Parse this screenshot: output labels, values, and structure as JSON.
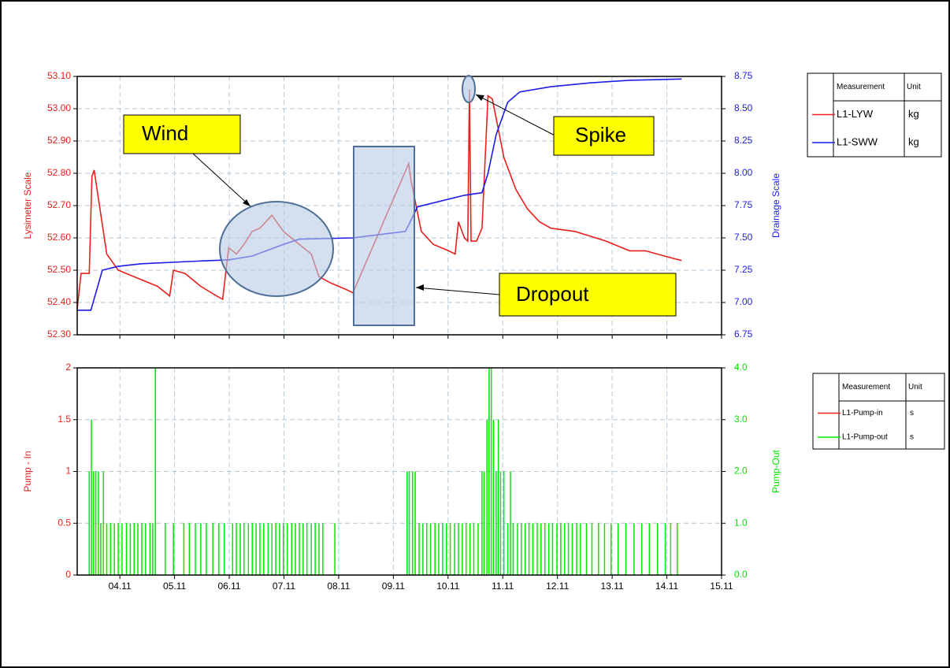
{
  "chart_data": [
    {
      "type": "line",
      "ylabel": "Lysimeter Scale",
      "y2label": "Drainage Scale",
      "xlim": [
        3.22,
        15
      ],
      "ylim": [
        52.3,
        53.1
      ],
      "y2lim": [
        6.75,
        8.75
      ],
      "grid": true,
      "yticks": [
        {
          "value": 52.3,
          "label": "52.30"
        },
        {
          "value": 52.4,
          "label": "52.40"
        },
        {
          "value": 52.5,
          "label": "52.50"
        },
        {
          "value": 52.6,
          "label": "52.60"
        },
        {
          "value": 52.7,
          "label": "52.70"
        },
        {
          "value": 52.8,
          "label": "52.80"
        },
        {
          "value": 52.9,
          "label": "52.90"
        },
        {
          "value": 53.0,
          "label": "53.00"
        },
        {
          "value": 53.1,
          "label": "53.10"
        }
      ],
      "y2ticks": [
        6.75,
        {
          "value": 7,
          "label": "7.00"
        },
        7.25,
        {
          "value": 7.5,
          "label": "7.50"
        },
        7.75,
        {
          "value": 8,
          "label": "8.00"
        },
        8.25,
        {
          "value": 8.5,
          "label": "8.50"
        },
        8.75
      ],
      "legend_headers": [
        "Measurement",
        "Unit"
      ],
      "annotations": [
        "Wind",
        "Spike",
        "Dropout"
      ],
      "series": [
        {
          "name": "L1-LYW",
          "unit": "kg",
          "color": "#e8201c",
          "x": [
            3.22,
            3.29,
            3.44,
            3.49,
            3.53,
            3.76,
            3.97,
            4.4,
            4.69,
            4.91,
            4.98,
            5.19,
            5.48,
            5.77,
            5.88,
            5.99,
            6.13,
            6.27,
            6.42,
            6.56,
            6.78,
            6.99,
            7.28,
            7.5,
            7.64,
            7.86,
            8.14,
            8.26,
            9.28,
            9.32,
            9.51,
            9.73,
            10.01,
            10.13,
            10.19,
            10.3,
            10.36,
            10.39,
            10.42,
            10.52,
            10.62,
            10.73,
            10.81,
            11.02,
            11.24,
            11.45,
            11.67,
            11.88,
            12.32,
            12.89,
            13.32,
            13.61,
            14.04,
            14.27
          ],
          "values": [
            52.38,
            52.49,
            52.49,
            52.79,
            52.81,
            52.55,
            52.5,
            52.47,
            52.45,
            52.42,
            52.5,
            52.49,
            52.45,
            52.42,
            52.41,
            52.57,
            52.55,
            52.58,
            52.62,
            52.63,
            52.67,
            52.62,
            52.58,
            52.55,
            52.48,
            52.46,
            52.44,
            52.43,
            52.83,
            52.78,
            52.62,
            52.58,
            52.56,
            52.55,
            52.65,
            52.6,
            52.59,
            53.06,
            52.59,
            52.59,
            52.63,
            53.04,
            53.03,
            52.85,
            52.75,
            52.69,
            52.65,
            52.63,
            52.62,
            52.59,
            52.56,
            52.56,
            52.54,
            52.53
          ]
        },
        {
          "name": "L1-SWW",
          "unit": "kg",
          "color": "#1c1ce8",
          "axis": "y2",
          "x": [
            3.22,
            3.47,
            3.68,
            3.97,
            4.4,
            5.41,
            5.99,
            6.42,
            6.99,
            7.28,
            8.26,
            9.22,
            9.28,
            9.44,
            10.01,
            10.3,
            10.62,
            10.73,
            10.88,
            11.09,
            11.31,
            11.88,
            12.6,
            13.32,
            14.27
          ],
          "values": [
            6.94,
            6.94,
            7.25,
            7.28,
            7.3,
            7.32,
            7.33,
            7.36,
            7.45,
            7.49,
            7.5,
            7.55,
            7.6,
            7.74,
            7.8,
            7.83,
            7.85,
            8.0,
            8.3,
            8.55,
            8.63,
            8.67,
            8.7,
            8.72,
            8.73
          ]
        }
      ]
    },
    {
      "type": "bar",
      "ylabel": "Pump - In",
      "y2label": "Pump-Out",
      "xlim": [
        3.22,
        15
      ],
      "ylim": [
        0,
        2
      ],
      "y2lim": [
        0,
        4
      ],
      "grid": true,
      "xticks": [
        {
          "value": 4,
          "label": "04.11"
        },
        {
          "value": 5,
          "label": "05.11"
        },
        {
          "value": 6,
          "label": "06.11"
        },
        {
          "value": 7,
          "label": "07.11"
        },
        {
          "value": 8,
          "label": "08.11"
        },
        {
          "value": 9,
          "label": "09.11"
        },
        {
          "value": 10,
          "label": "10.11"
        },
        {
          "value": 11,
          "label": "11.11"
        },
        {
          "value": 12,
          "label": "12.11"
        },
        {
          "value": 13,
          "label": "13.11"
        },
        {
          "value": 14,
          "label": "14.11"
        },
        {
          "value": 15,
          "label": "15.11"
        }
      ],
      "yticks": [
        0,
        0.5,
        1,
        1.5,
        2
      ],
      "y2ticks": [
        {
          "value": 0,
          "label": "0.0"
        },
        {
          "value": 1,
          "label": "1.0"
        },
        {
          "value": 2,
          "label": "2.0"
        },
        {
          "value": 3,
          "label": "3.0"
        },
        {
          "value": 4,
          "label": "4.0"
        }
      ],
      "legend_headers": [
        "Measurement",
        "Unit"
      ],
      "series": [
        {
          "name": "L1-Pump-in",
          "unit": "s",
          "color": "#e8201c",
          "x": [
            3.44,
            14.27
          ],
          "values": [
            0,
            0
          ]
        },
        {
          "name": "L1-Pump-out",
          "unit": "s",
          "color": "#00e800",
          "axis": "y2",
          "x": [
            3.44,
            3.48,
            3.52,
            3.56,
            3.61,
            3.65,
            3.7,
            3.76,
            3.83,
            3.9,
            3.97,
            4.04,
            4.12,
            4.19,
            4.26,
            4.33,
            4.4,
            4.47,
            4.55,
            4.6,
            4.65,
            4.83,
            4.98,
            5.17,
            5.27,
            5.38,
            5.48,
            5.58,
            5.7,
            5.81,
            5.91,
            6.06,
            6.13,
            6.2,
            6.27,
            6.35,
            6.42,
            6.49,
            6.56,
            6.63,
            6.71,
            6.78,
            6.85,
            6.92,
            6.99,
            7.06,
            7.14,
            7.21,
            7.28,
            7.35,
            7.42,
            7.5,
            7.57,
            7.64,
            7.71,
            7.93,
            9.25,
            9.29,
            9.35,
            9.4,
            9.47,
            9.54,
            9.61,
            9.68,
            9.76,
            9.83,
            9.9,
            9.97,
            10.04,
            10.12,
            10.19,
            10.26,
            10.33,
            10.4,
            10.47,
            10.55,
            10.62,
            10.66,
            10.71,
            10.75,
            10.79,
            10.83,
            10.88,
            10.92,
            10.96,
            11.02,
            11.09,
            11.14,
            11.19,
            11.27,
            11.34,
            11.41,
            11.48,
            11.55,
            11.63,
            11.7,
            11.77,
            11.84,
            11.91,
            11.99,
            12.06,
            12.13,
            12.2,
            12.27,
            12.35,
            12.42,
            12.53,
            12.63,
            12.75,
            12.86,
            12.98,
            13.11,
            13.25,
            13.4,
            13.54,
            13.68,
            13.83,
            13.97,
            14.07,
            14.19
          ],
          "values": [
            2,
            3,
            2,
            2,
            2,
            1,
            2,
            1,
            1,
            1,
            1,
            1,
            1,
            1,
            1,
            1,
            1,
            1,
            1,
            1,
            4,
            1,
            1,
            1,
            1,
            1,
            1,
            1,
            1,
            1,
            1,
            1,
            1,
            1,
            1,
            1,
            1,
            1,
            1,
            1,
            1,
            1,
            1,
            1,
            1,
            1,
            1,
            1,
            1,
            1,
            1,
            1,
            1,
            1,
            1,
            1,
            2,
            2,
            2,
            2,
            1,
            1,
            1,
            1,
            1,
            1,
            1,
            1,
            1,
            1,
            1,
            1,
            1,
            1,
            1,
            1,
            2,
            2,
            3,
            4,
            4,
            3,
            2,
            3,
            2,
            2,
            1,
            2,
            1,
            1,
            1,
            1,
            1,
            1,
            1,
            1,
            1,
            1,
            1,
            1,
            1,
            1,
            1,
            1,
            1,
            1,
            1,
            1,
            1,
            1,
            1,
            1,
            1,
            1,
            1,
            1,
            1,
            1,
            1,
            1
          ]
        }
      ]
    }
  ]
}
